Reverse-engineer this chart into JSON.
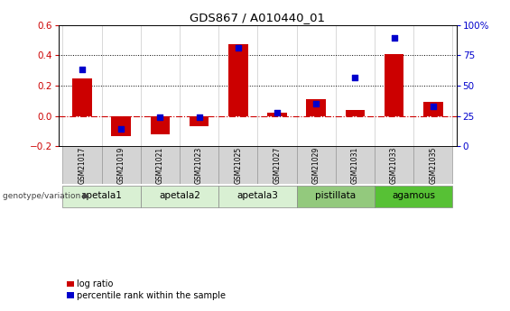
{
  "title": "GDS867 / A010440_01",
  "samples": [
    "GSM21017",
    "GSM21019",
    "GSM21021",
    "GSM21023",
    "GSM21025",
    "GSM21027",
    "GSM21029",
    "GSM21031",
    "GSM21033",
    "GSM21035"
  ],
  "log_ratio": [
    0.25,
    -0.13,
    -0.12,
    -0.07,
    0.47,
    0.02,
    0.11,
    0.04,
    0.41,
    0.09
  ],
  "percentile_rank": [
    63,
    14,
    24,
    24,
    81,
    28,
    35,
    57,
    89,
    33
  ],
  "groups": [
    {
      "label": "apetala1",
      "indices": [
        0,
        1
      ],
      "color": "#d9f0d3"
    },
    {
      "label": "apetala2",
      "indices": [
        2,
        3
      ],
      "color": "#d9f0d3"
    },
    {
      "label": "apetala3",
      "indices": [
        4,
        5
      ],
      "color": "#d9f0d3"
    },
    {
      "label": "pistillata",
      "indices": [
        6,
        7
      ],
      "color": "#93c97d"
    },
    {
      "label": "agamous",
      "indices": [
        8,
        9
      ],
      "color": "#57c135"
    }
  ],
  "ylim_left": [
    -0.2,
    0.6
  ],
  "ylim_right": [
    0,
    100
  ],
  "yticks_left": [
    -0.2,
    0.0,
    0.2,
    0.4,
    0.6
  ],
  "yticks_right": [
    0,
    25,
    50,
    75,
    100
  ],
  "bar_color": "#cc0000",
  "dot_color": "#0000cc",
  "bg_color": "#ffffff",
  "sample_bg_color": "#cccccc",
  "legend_bar_label": "log ratio",
  "legend_dot_label": "percentile rank within the sample",
  "genotype_label": "genotype/variation"
}
